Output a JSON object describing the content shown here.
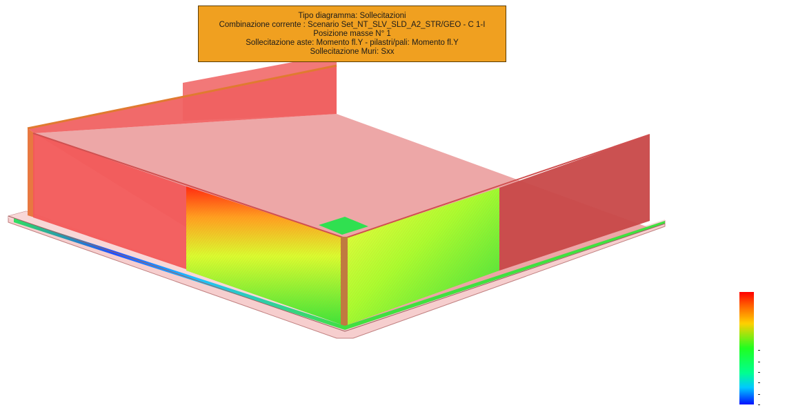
{
  "info_box": {
    "lines": [
      "Tipo diagramma: Sollecitazioni",
      "Combinazione corrente : Scenario Set_NT_SLV_SLD_A2_STR/GEO - C 1-I",
      "Posizione masse N° 1",
      "Sollecitazione aste: Momento fl.Y - pilastri/pali: Momento fl.Y",
      "Sollecitazione Muri: Sxx"
    ],
    "background": "#f0a020"
  },
  "colors": {
    "wall_red": "#f05a5a",
    "slab_pink": "#eca0a0",
    "foundation_pink": "#f5c8c8",
    "stress_green": "#40e040",
    "stress_yellow": "#e8ff30",
    "stress_orange": "#ff8020",
    "stress_blue": "#2040ff"
  },
  "legend": {
    "scale": [
      "#ff0000",
      "#ff8000",
      "#ffff00",
      "#00ff00",
      "#00ffff",
      "#0000ff"
    ]
  }
}
